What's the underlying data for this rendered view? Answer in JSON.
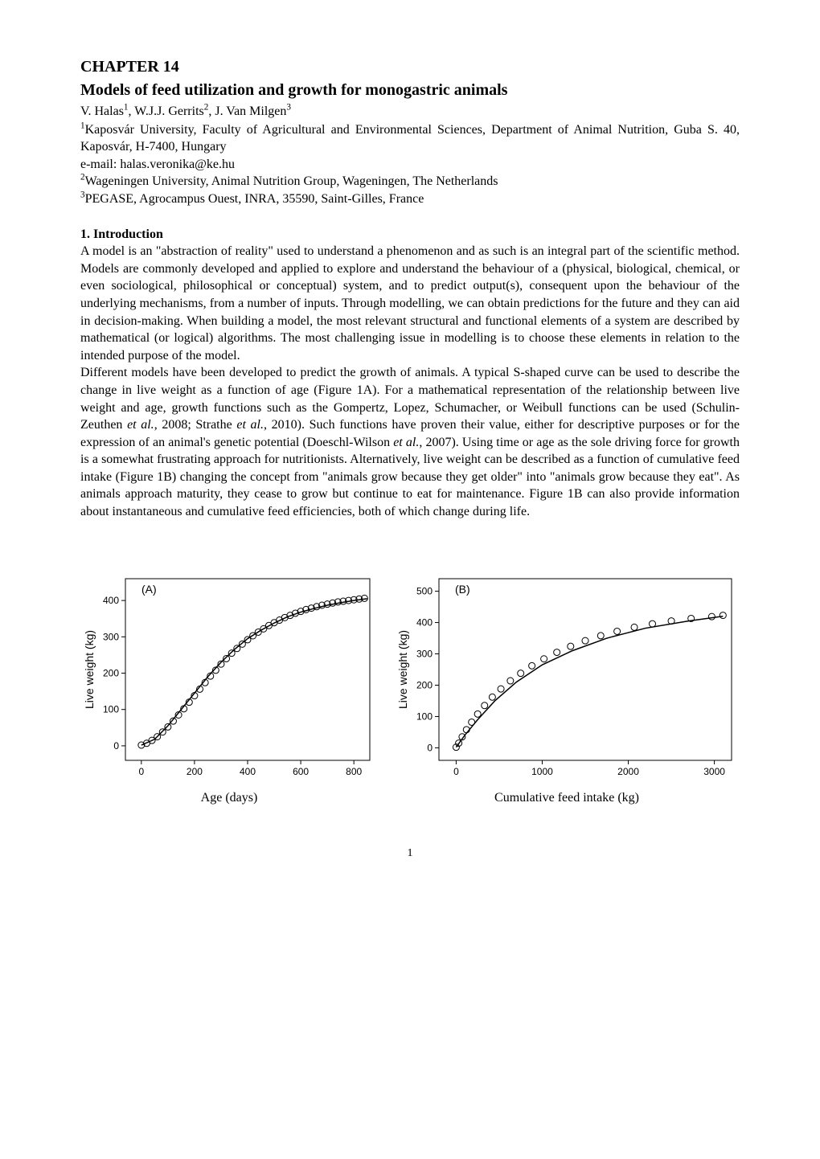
{
  "chapter_label": "CHAPTER 14",
  "title": "Models of feed utilization and growth for monogastric animals",
  "authors_html": "V. Halas<sup>1</sup>, W.J.J. Gerrits<sup>2</sup>, J. Van Milgen<sup>3</sup>",
  "affiliation1_html": "<sup>1</sup>Kaposvár University, Faculty of Agricultural and Environmental Sciences, Department of Animal Nutrition, Guba S. 40, Kaposvár, H-7400, Hungary",
  "email": "e-mail: halas.veronika@ke.hu",
  "affiliation2_html": "<sup>2</sup>Wageningen University, Animal Nutrition Group, Wageningen, The Netherlands",
  "affiliation3_html": "<sup>3</sup>PEGASE, Agrocampus Ouest, INRA, 35590, Saint-Gilles, France",
  "section1_heading": "1. Introduction",
  "para1_html": "A model is an \"abstraction of reality\" used to understand a phenomenon and as such is an integral part of the scientific method. Models are commonly developed and applied to explore and understand the behaviour of a (physical, biological, chemical, or even sociological, philosophical or conceptual) system, and to predict output(s), consequent upon the behaviour of the underlying mechanisms, from a number of inputs. Through modelling, we can obtain predictions for the future and they can aid in decision-making. When building a model, the most relevant structural and functional elements of a system are described by mathematical (or logical) algorithms. The most challenging issue in modelling is to choose these elements in relation to the intended purpose of the model.",
  "para2_html": "Different models have been developed to predict the growth of animals. A typical S-shaped curve can be used to describe the change in live weight as a function of age (Figure 1A). For a mathematical representation of the relationship between live weight and age, growth functions such as the Gompertz, Lopez, Schumacher, or Weibull functions can be used (Schulin-Zeuthen <span class=\"italic\">et al.</span>, 2008; Strathe <span class=\"italic\">et al.</span>, 2010). Such functions have proven their value, either for descriptive purposes or for the expression of an animal's genetic potential (Doeschl-Wilson <span class=\"italic\">et al.</span>, 2007). Using time or age as the sole driving force for growth is a somewhat frustrating approach for nutritionists. Alternatively, live weight can be described as a function of cumulative feed intake (Figure 1B) changing the concept from \"animals grow because they get older\" into \"animals grow because they eat\". As animals approach maturity, they cease to grow but continue to eat for maintenance. Figure 1B can also provide information about instantaneous and cumulative feed efficiencies, both of which change during life.",
  "page_number": "1",
  "chartA": {
    "type": "scatter-with-fit",
    "panel_label": "(A)",
    "panel_label_fontsize": 14,
    "xlabel": "Age (days)",
    "ylabel": "Live weight (kg)",
    "ylabel_fontsize": 14,
    "xticks": [
      0,
      200,
      400,
      600,
      800
    ],
    "yticks": [
      0,
      100,
      200,
      300,
      400
    ],
    "xlim": [
      -60,
      860
    ],
    "ylim": [
      -40,
      460
    ],
    "tick_fontsize": 12,
    "marker": "circle-open",
    "marker_size": 4,
    "marker_color": "#000000",
    "line_color": "#000000",
    "line_width": 1.5,
    "background_color": "#ffffff",
    "axis_color": "#000000",
    "scatter_x": [
      0,
      20,
      40,
      60,
      80,
      100,
      120,
      140,
      160,
      180,
      200,
      220,
      240,
      260,
      280,
      300,
      320,
      340,
      360,
      380,
      400,
      420,
      440,
      460,
      480,
      500,
      520,
      540,
      560,
      580,
      600,
      620,
      640,
      660,
      680,
      700,
      720,
      740,
      760,
      780,
      800,
      820,
      840
    ],
    "scatter_y": [
      2,
      7,
      15,
      25,
      38,
      52,
      68,
      85,
      102,
      120,
      138,
      156,
      174,
      192,
      208,
      225,
      240,
      255,
      268,
      280,
      292,
      303,
      313,
      322,
      331,
      339,
      346,
      353,
      359,
      365,
      370,
      375,
      379,
      383,
      387,
      390,
      393,
      396,
      398,
      400,
      402,
      404,
      406
    ],
    "fit_x": [
      0,
      50,
      100,
      150,
      200,
      250,
      300,
      350,
      400,
      450,
      500,
      550,
      600,
      650,
      700,
      750,
      800,
      850
    ],
    "fit_y": [
      2,
      18,
      55,
      100,
      145,
      190,
      230,
      265,
      295,
      318,
      338,
      355,
      368,
      378,
      387,
      394,
      400,
      405
    ]
  },
  "chartB": {
    "type": "scatter-with-fit",
    "panel_label": "(B)",
    "panel_label_fontsize": 14,
    "xlabel": "Cumulative feed intake (kg)",
    "ylabel": "Live weight (kg)",
    "ylabel_fontsize": 14,
    "xticks": [
      0,
      1000,
      2000,
      3000
    ],
    "yticks": [
      0,
      100,
      200,
      300,
      400,
      500
    ],
    "xlim": [
      -200,
      3200
    ],
    "ylim": [
      -40,
      540
    ],
    "tick_fontsize": 12,
    "marker": "circle-open",
    "marker_size": 4,
    "marker_color": "#000000",
    "line_color": "#000000",
    "line_width": 1.5,
    "background_color": "#ffffff",
    "axis_color": "#000000",
    "scatter_x": [
      0,
      30,
      70,
      120,
      180,
      250,
      330,
      420,
      520,
      630,
      750,
      880,
      1020,
      1170,
      1330,
      1500,
      1680,
      1870,
      2070,
      2280,
      2500,
      2730,
      2970,
      3100
    ],
    "scatter_y": [
      2,
      15,
      35,
      58,
      82,
      108,
      135,
      162,
      188,
      214,
      238,
      262,
      284,
      305,
      324,
      342,
      358,
      372,
      385,
      396,
      405,
      413,
      419,
      423
    ],
    "fit_x": [
      0,
      100,
      250,
      450,
      700,
      1000,
      1350,
      1750,
      2200,
      2700,
      3100
    ],
    "fit_y": [
      2,
      40,
      90,
      150,
      210,
      265,
      310,
      350,
      382,
      405,
      420
    ]
  }
}
